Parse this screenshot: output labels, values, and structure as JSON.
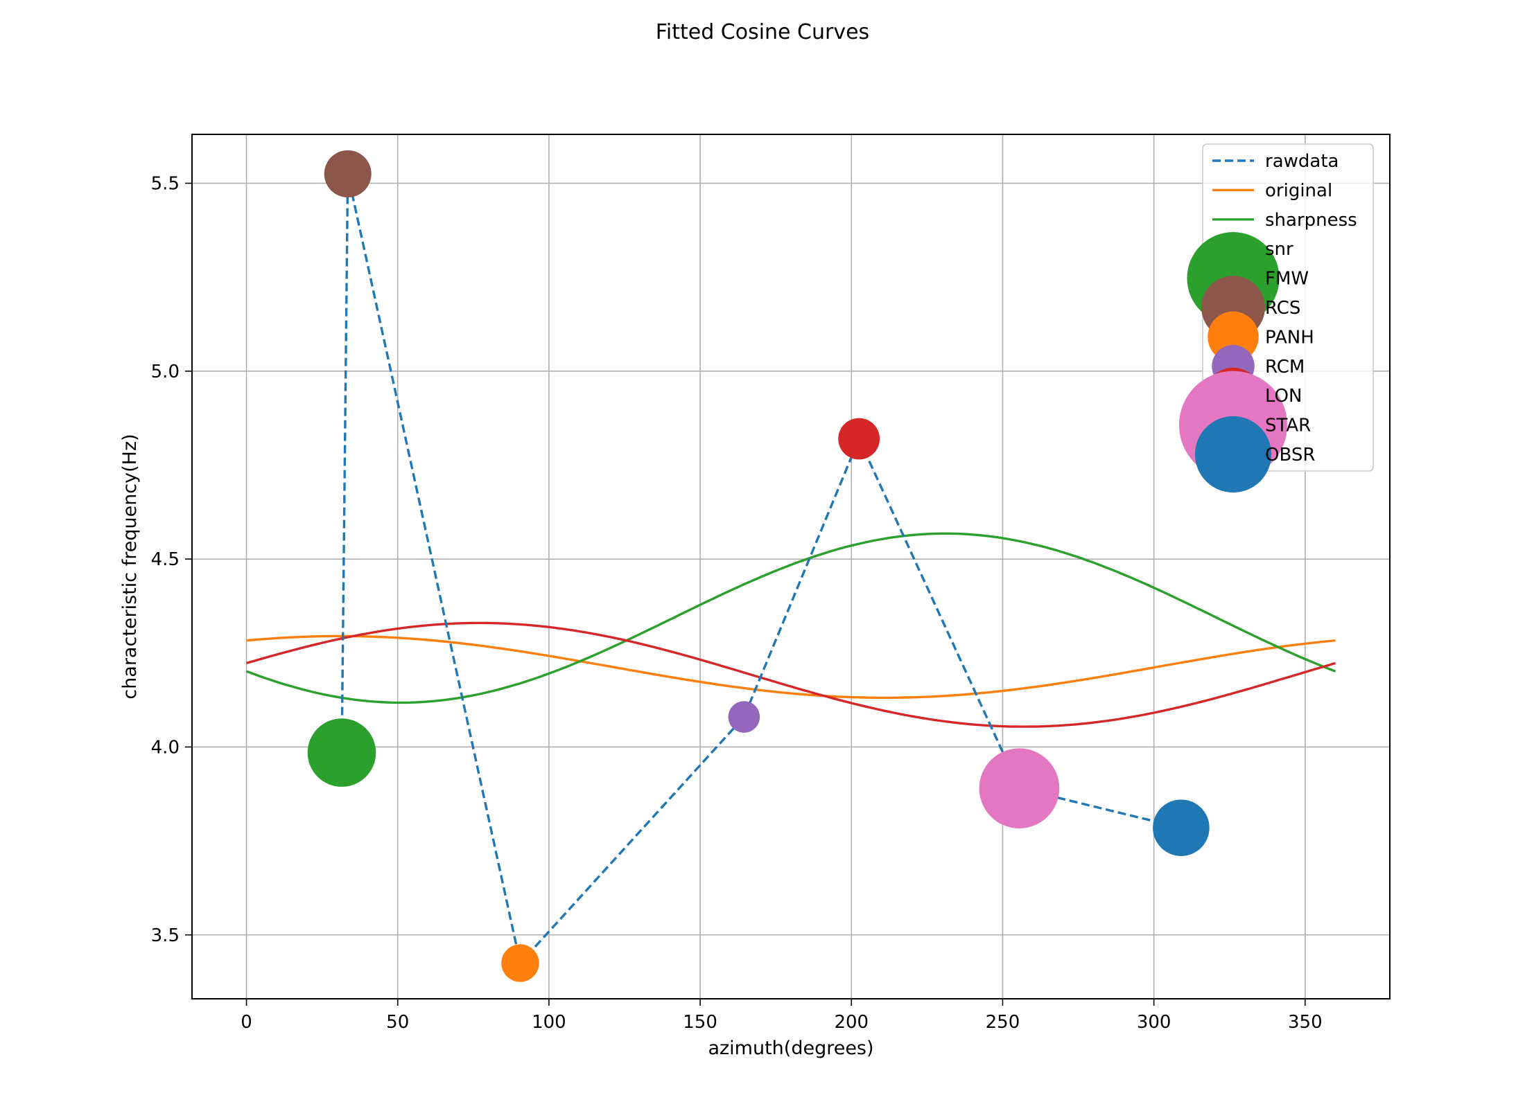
{
  "chart_data": {
    "type": "line",
    "title": "Fitted Cosine Curves",
    "xlabel": "azimuth(degrees)",
    "ylabel": "characteristic frequency(Hz)",
    "xlim": [
      -18,
      378
    ],
    "ylim": [
      3.33,
      5.63
    ],
    "xticks": [
      0,
      50,
      100,
      150,
      200,
      250,
      300,
      350
    ],
    "yticks": [
      3.5,
      4.0,
      4.5,
      5.0,
      5.5
    ],
    "grid": true,
    "legend_position": "top-right",
    "rawdata": {
      "name": "rawdata",
      "color": "#1f77b4",
      "style": "dashed",
      "x": [
        31.5,
        33.5,
        90.5,
        164.5,
        202.5,
        255.5,
        309
      ],
      "y": [
        3.985,
        5.525,
        3.425,
        4.08,
        4.82,
        3.89,
        3.785
      ]
    },
    "curves": [
      {
        "name": "original",
        "color": "#ff7f0e",
        "mean": 4.213,
        "amplitude": 0.082,
        "phase_deg": 31
      },
      {
        "name": "sharpness",
        "color": "#2ca02c",
        "mean": 4.343,
        "amplitude": 0.225,
        "phase_deg": 231
      },
      {
        "name": "snr",
        "color": "#d62728",
        "mean": 4.192,
        "amplitude": 0.138,
        "phase_deg": 77
      }
    ],
    "stations": [
      {
        "name": "FMW",
        "x": 31.5,
        "y": 3.985,
        "size": 1.45,
        "color": "#2ca02c"
      },
      {
        "name": "RCS",
        "x": 33.5,
        "y": 5.525,
        "size": 1.0,
        "color": "#8c564b"
      },
      {
        "name": "PANH",
        "x": 90.5,
        "y": 3.425,
        "size": 0.8,
        "color": "#ff7f0e"
      },
      {
        "name": "RCM",
        "x": 164.5,
        "y": 4.08,
        "size": 0.67,
        "color": "#9467bd"
      },
      {
        "name": "LON",
        "x": 202.5,
        "y": 4.82,
        "size": 0.88,
        "color": "#d62728"
      },
      {
        "name": "STAR",
        "x": 255.5,
        "y": 3.89,
        "size": 1.7,
        "color": "#e377c2"
      },
      {
        "name": "OBSR",
        "x": 309,
        "y": 3.785,
        "size": 1.2,
        "color": "#1f77b4"
      }
    ]
  }
}
